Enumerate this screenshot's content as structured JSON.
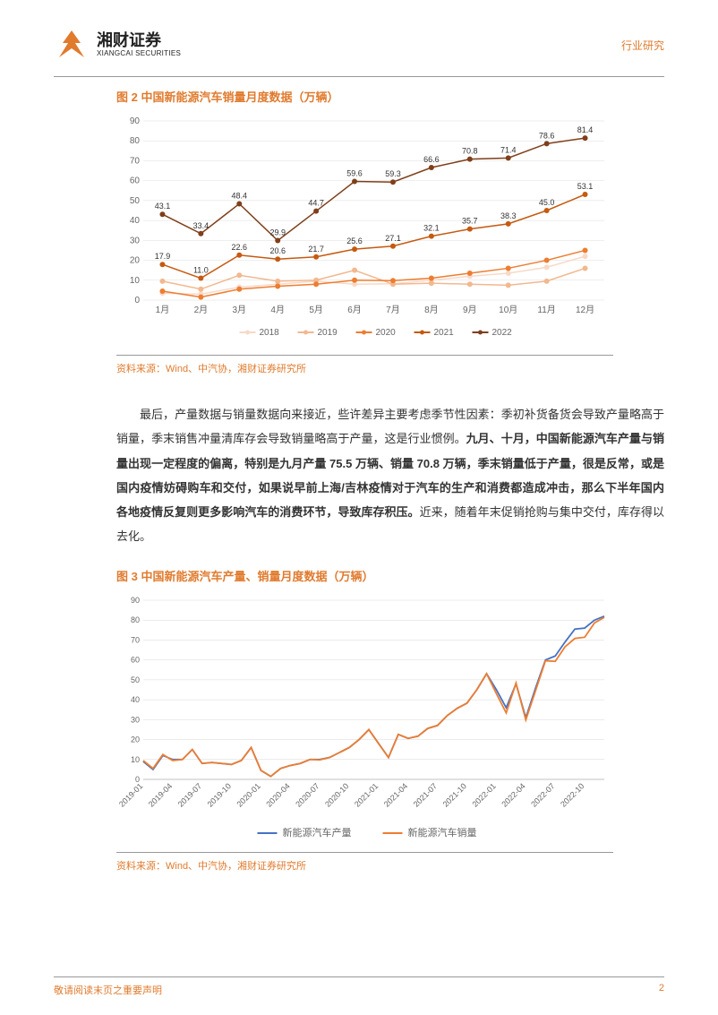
{
  "header": {
    "logo_cn": "湘财证券",
    "logo_en": "XIANGCAI SECURITIES",
    "category": "行业研究"
  },
  "fig2": {
    "title": "图 2 中国新能源汽车销量月度数据（万辆）",
    "type": "line",
    "source": "资料来源：Wind、中汽协，湘财证券研究所",
    "categories": [
      "1月",
      "2月",
      "3月",
      "4月",
      "5月",
      "6月",
      "7月",
      "8月",
      "9月",
      "10月",
      "11月",
      "12月"
    ],
    "ylim": [
      0,
      90
    ],
    "ytick_step": 10,
    "background_color": "#ffffff",
    "grid_color": "#dddddd",
    "label_fontsize": 10,
    "value_fontsize": 9,
    "marker": "circle",
    "marker_size": 3,
    "line_width": 1.5,
    "series": [
      {
        "name": "2018",
        "color": "#f8d9c8",
        "values": [
          3.5,
          3.0,
          6.5,
          8.0,
          9.5,
          8.0,
          8.2,
          10.0,
          12.0,
          13.5,
          16.5,
          22.0
        ],
        "show_labels": false
      },
      {
        "name": "2019",
        "color": "#f2b88f",
        "values": [
          9.5,
          5.5,
          12.5,
          9.5,
          10.0,
          15.0,
          8.0,
          8.5,
          8.0,
          7.5,
          9.5,
          16.0
        ],
        "show_labels": false
      },
      {
        "name": "2020",
        "color": "#ed7d31",
        "values": [
          4.5,
          1.5,
          5.5,
          7.0,
          8.0,
          10.0,
          9.8,
          11.0,
          13.5,
          16.0,
          20.0,
          25.0
        ],
        "show_labels": false
      },
      {
        "name": "2021",
        "color": "#c55a11",
        "values": [
          17.9,
          11.0,
          22.6,
          20.6,
          21.7,
          25.6,
          27.1,
          32.1,
          35.7,
          38.3,
          45.0,
          53.1
        ],
        "show_labels": true
      },
      {
        "name": "2022",
        "color": "#7f3f1a",
        "values": [
          43.1,
          33.4,
          48.4,
          29.9,
          44.7,
          59.6,
          59.3,
          66.6,
          70.8,
          71.4,
          78.6,
          81.4
        ],
        "show_labels": true
      }
    ]
  },
  "body": {
    "p1_a": "最后，产量数据与销量数据向来接近，些许差异主要考虑季节性因素：季初补货备货会导致产量略高于销量，季末销售冲量清库存会导致销量略高于产量，这是行业惯例。",
    "p1_b": "九月、十月，中国新能源汽车产量与销量出现一定程度的偏离，特别是九月产量 75.5 万辆、销量 70.8 万辆，季末销量低于产量，很是反常，或是国内疫情妨碍购车和交付，如果说早前上海/吉林疫情对于汽车的生产和消费都造成冲击，那么下半年国内各地疫情反复则更多影响汽车的消费环节，导致库存积压。",
    "p1_c": "近来，随着年末促销抢购与集中交付，库存得以去化。"
  },
  "fig3": {
    "title": "图 3 中国新能源汽车产量、销量月度数据（万辆）",
    "type": "line",
    "source": "资料来源：Wind、中汽协，湘财证券研究所",
    "x_labels": [
      "2019-01",
      "2019-04",
      "2019-07",
      "2019-10",
      "2020-01",
      "2020-04",
      "2020-07",
      "2020-10",
      "2021-01",
      "2021-04",
      "2021-07",
      "2021-10",
      "2022-01",
      "2022-04",
      "2022-07",
      "2022-10"
    ],
    "ylim": [
      0,
      90
    ],
    "ytick_step": 10,
    "background_color": "#ffffff",
    "grid_color": "#d9d9d9",
    "label_fontsize": 9,
    "line_width": 1.8,
    "series": [
      {
        "name": "新能源汽车产量",
        "color": "#4472c4",
        "values": [
          9,
          5,
          12,
          10,
          10,
          15,
          8,
          8.5,
          8,
          7.5,
          9.5,
          16,
          4.5,
          1.5,
          5.5,
          7,
          8,
          10,
          10,
          11,
          13.5,
          16,
          20,
          25,
          18,
          11,
          22.6,
          20.6,
          21.7,
          25.6,
          27.1,
          32.1,
          35.7,
          38.3,
          45,
          53.1,
          45,
          36,
          48,
          31,
          46,
          60,
          62,
          69,
          75.5,
          76,
          80,
          82
        ]
      },
      {
        "name": "新能源汽车销量",
        "color": "#ed7d31",
        "values": [
          9.5,
          5.5,
          12.5,
          9.5,
          10,
          15,
          8,
          8.5,
          8,
          7.5,
          9.5,
          16,
          4.5,
          1.5,
          5.5,
          7,
          8,
          10,
          9.8,
          11,
          13.5,
          16,
          20,
          25,
          17.9,
          11,
          22.6,
          20.6,
          21.7,
          25.6,
          27.1,
          32.1,
          35.7,
          38.3,
          45,
          53.1,
          43.1,
          33.4,
          48.4,
          29.9,
          44.7,
          59.6,
          59.3,
          66.6,
          70.8,
          71.4,
          78.6,
          81.4
        ]
      }
    ]
  },
  "footer": {
    "left": "敬请阅读末页之重要声明",
    "page": "2"
  }
}
